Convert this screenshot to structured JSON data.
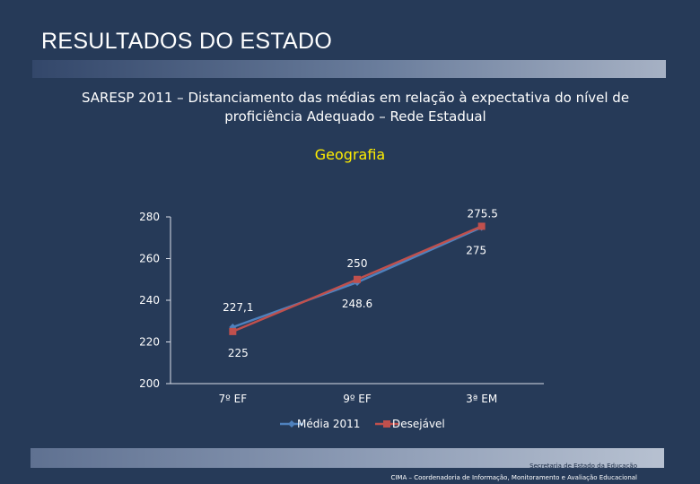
{
  "slide_title": "RESULTADOS DO ESTADO",
  "chart_data": {
    "type": "line",
    "title": "SARESP 2011 – Distanciamento das médias em relação à expectativa do nível de proficiência Adequado – Rede Estadual",
    "subtitle": "Geografia",
    "categories": [
      "7º EF",
      "9º EF",
      "3ª EM"
    ],
    "ylim": [
      200,
      280
    ],
    "yticks": [
      "200",
      "220",
      "240",
      "260",
      "280"
    ],
    "series": [
      {
        "name": "Média 2011",
        "values": [
          227.1,
          248.6,
          275
        ],
        "labels": [
          "227,1",
          "248.6",
          "275"
        ],
        "color": "#4f81bd",
        "marker": "diamond"
      },
      {
        "name": "Desejável",
        "values": [
          225,
          250,
          275.5
        ],
        "labels": [
          "225",
          "250",
          "275.5"
        ],
        "color": "#c0504d",
        "marker": "square"
      }
    ]
  },
  "footer": {
    "line1": "Secretaria de Estado da Educação",
    "line2": "CIMA – Coordenadoria de Informação, Monitoramento e Avaliação Educacional"
  }
}
